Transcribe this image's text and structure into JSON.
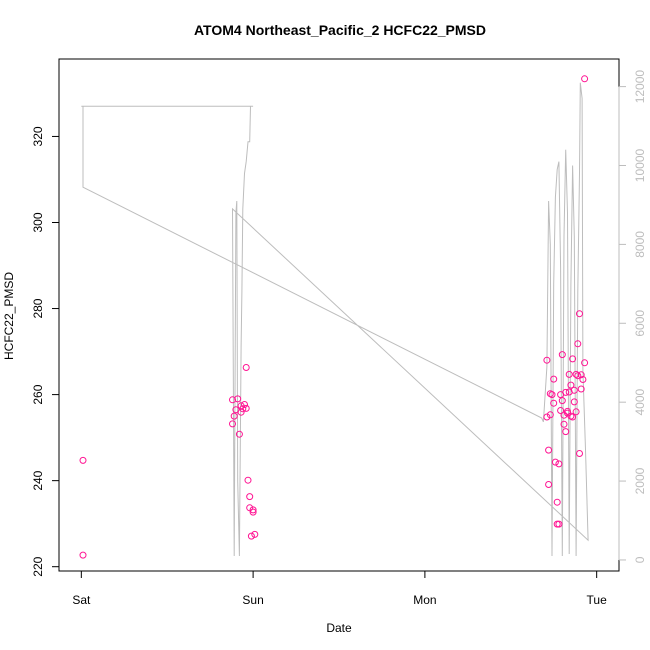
{
  "chart_data": {
    "type": "scatter",
    "title": "ATOM4 Northeast_Pacific_2 HCFC22_PMSD",
    "xlabel": "Date",
    "ylabel": "HCFC22_PMSD",
    "x_ticks": [
      {
        "label": "Sat",
        "value": 0
      },
      {
        "label": "Sun",
        "value": 1
      },
      {
        "label": "Mon",
        "value": 2
      },
      {
        "label": "Tue",
        "value": 3
      }
    ],
    "xlim": [
      -0.13,
      3.13
    ],
    "ylim": [
      219,
      338
    ],
    "y_ticks": [
      220,
      240,
      260,
      280,
      300,
      320
    ],
    "y2lim": [
      -280,
      12700
    ],
    "y2_ticks": [
      0,
      2000,
      4000,
      6000,
      8000,
      10000,
      12000
    ],
    "colors": {
      "points": "#ff1493",
      "line": "#bdbdbd",
      "axis": "#000000",
      "right_axis": "#bdbdbd"
    },
    "points": [
      [
        0.01,
        244.7
      ],
      [
        0.01,
        222.7
      ],
      [
        0.88,
        253.2
      ],
      [
        0.88,
        258.8
      ],
      [
        0.89,
        255.0
      ],
      [
        0.9,
        256.5
      ],
      [
        0.91,
        259.0
      ],
      [
        0.92,
        250.8
      ],
      [
        0.93,
        255.9
      ],
      [
        0.93,
        257.4
      ],
      [
        0.94,
        256.7
      ],
      [
        0.95,
        257.7
      ],
      [
        0.96,
        256.8
      ],
      [
        0.96,
        266.3
      ],
      [
        0.97,
        240.1
      ],
      [
        0.98,
        236.3
      ],
      [
        0.98,
        233.7
      ],
      [
        0.99,
        227.1
      ],
      [
        1.0,
        233.2
      ],
      [
        1.0,
        232.7
      ],
      [
        1.01,
        227.5
      ],
      [
        2.71,
        254.8
      ],
      [
        2.71,
        268.0
      ],
      [
        2.72,
        239.1
      ],
      [
        2.72,
        247.1
      ],
      [
        2.73,
        260.2
      ],
      [
        2.73,
        255.3
      ],
      [
        2.74,
        260.0
      ],
      [
        2.75,
        263.6
      ],
      [
        2.75,
        258.0
      ],
      [
        2.76,
        244.3
      ],
      [
        2.77,
        235.0
      ],
      [
        2.77,
        229.9
      ],
      [
        2.78,
        229.9
      ],
      [
        2.78,
        243.9
      ],
      [
        2.79,
        256.3
      ],
      [
        2.79,
        260.0
      ],
      [
        2.8,
        269.3
      ],
      [
        2.8,
        258.6
      ],
      [
        2.81,
        253.1
      ],
      [
        2.81,
        255.2
      ],
      [
        2.82,
        251.4
      ],
      [
        2.82,
        260.5
      ],
      [
        2.83,
        255.7
      ],
      [
        2.83,
        256.1
      ],
      [
        2.84,
        260.6
      ],
      [
        2.84,
        264.7
      ],
      [
        2.85,
        255.0
      ],
      [
        2.85,
        262.2
      ],
      [
        2.86,
        254.8
      ],
      [
        2.86,
        268.3
      ],
      [
        2.87,
        261.0
      ],
      [
        2.87,
        258.3
      ],
      [
        2.88,
        264.7
      ],
      [
        2.88,
        256.0
      ],
      [
        2.89,
        264.4
      ],
      [
        2.89,
        271.8
      ],
      [
        2.9,
        278.8
      ],
      [
        2.9,
        246.3
      ],
      [
        2.91,
        261.3
      ],
      [
        2.91,
        264.6
      ],
      [
        2.92,
        263.5
      ],
      [
        2.93,
        267.4
      ],
      [
        2.93,
        333.4
      ]
    ],
    "line": [
      [
        0.0,
        11500
      ],
      [
        0.01,
        11500
      ],
      [
        0.01,
        9450
      ],
      [
        2.68,
        3600
      ],
      [
        2.69,
        3500
      ],
      [
        2.71,
        4900
      ],
      [
        2.72,
        9100
      ],
      [
        2.73,
        8000
      ],
      [
        2.74,
        100
      ],
      [
        2.75,
        7000
      ],
      [
        2.76,
        9200
      ],
      [
        2.77,
        9900
      ],
      [
        2.78,
        10100
      ],
      [
        2.79,
        7400
      ],
      [
        2.8,
        100
      ],
      [
        2.81,
        8200
      ],
      [
        2.82,
        10400
      ],
      [
        2.83,
        8800
      ],
      [
        2.84,
        150
      ],
      [
        2.85,
        7000
      ],
      [
        2.86,
        10000
      ],
      [
        2.87,
        8200
      ],
      [
        2.88,
        100
      ],
      [
        2.89,
        6800
      ],
      [
        2.9,
        9800
      ],
      [
        2.905,
        12100
      ],
      [
        2.915,
        11700
      ],
      [
        2.92,
        4800
      ],
      [
        2.935,
        2800
      ],
      [
        2.95,
        500
      ],
      [
        0.88,
        8900
      ],
      [
        0.89,
        100
      ],
      [
        0.9,
        8800
      ],
      [
        0.905,
        9100
      ],
      [
        0.91,
        2000
      ],
      [
        0.92,
        100
      ],
      [
        0.93,
        5400
      ],
      [
        0.935,
        6800
      ],
      [
        0.94,
        8900
      ],
      [
        0.95,
        9800
      ],
      [
        0.96,
        10100
      ],
      [
        0.97,
        10600
      ],
      [
        0.98,
        10600
      ],
      [
        0.985,
        11500
      ],
      [
        1.0,
        11500
      ],
      [
        0.0,
        11500
      ]
    ]
  }
}
